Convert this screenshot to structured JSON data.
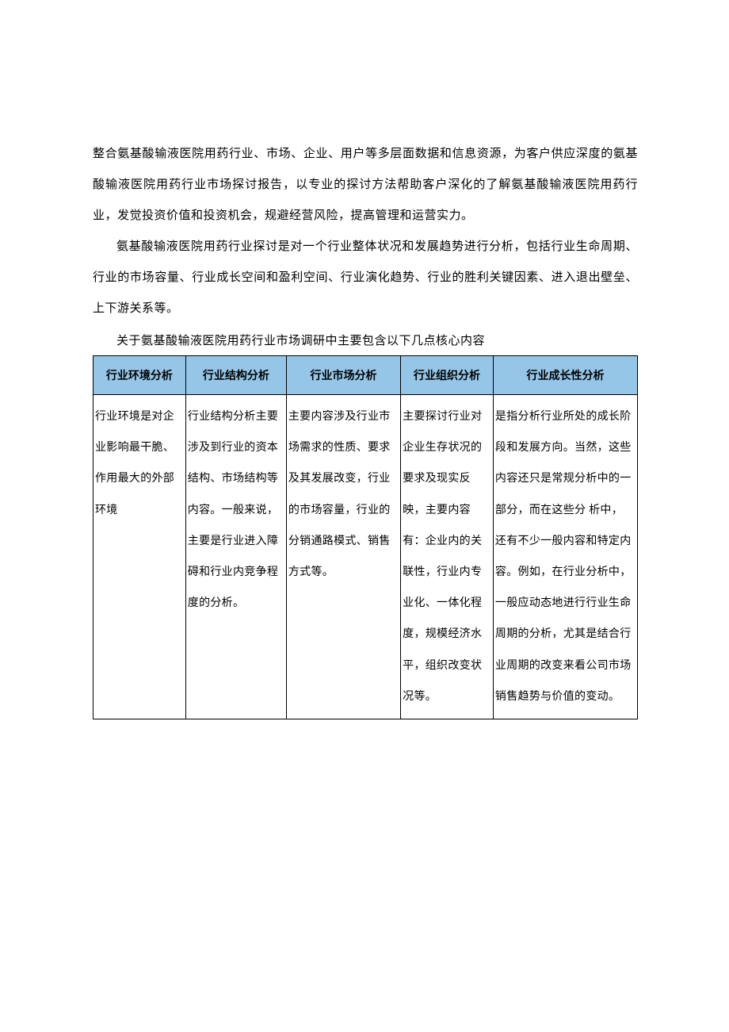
{
  "paragraphs": {
    "p1": "整合氨基酸输液医院用药行业、市场、企业、用户等多层面数据和信息资源，为客户供应深度的氨基酸输液医院用药行业市场探讨报告，以专业的探讨方法帮助客户深化的了解氨基酸输液医院用药行业，发觉投资价值和投资机会，规避经营风险，提高管理和运营实力。",
    "p2": "氨基酸输液医院用药行业探讨是对一个行业整体状况和发展趋势进行分析，包括行业生命周期、行业的市场容量、行业成长空间和盈利空间、行业演化趋势、行业的胜利关键因素、进入退出壁垒、上下游关系等。",
    "caption": "关于氨基酸输液医院用药行业市场调研中主要包含以下几点核心内容"
  },
  "table": {
    "type": "table",
    "header_bg_color": "#95c6e8",
    "border_color": "#000000",
    "text_color": "#000000",
    "font_size": 14,
    "headers": {
      "h1": "行业环境分析",
      "h2": "行业结构分析",
      "h3": "行业市场分析",
      "h4": "行业组织分析",
      "h5": "行业成长性分析"
    },
    "cells": {
      "c1": "行业环境是对企业影响最干脆、作用最大的外部环境",
      "c2": "行业结构分析主要涉及到行业的资本结构、市场结构等内容。一般来说，主要是行业进入障碍和行业内竞争程度的分析。",
      "c3": "主要内容涉及行业市场需求的性质、要求及其发展改变，行业的市场容量，行业的分销通路模式、销售方式等。",
      "c4": "主要探讨行业对企业生存状况的要求及现实反映，主要内容有：企业内的关联性，行业内专业化、一体化程度，规模经济水平，组织改变状况等。",
      "c5": "是指分析行业所处的成长阶段和发展方向。当然，这些内容还只是常规分析中的一部分，而在这些分\n\n析中，还有不少一般内容和特定内容。例如，在行业分析中，一般应动态地进行行业生命周期的分析，尤其是结合行业周期的改变来看公司市场销售趋势与价值的变动。"
    },
    "column_widths": [
      "17%",
      "18.5%",
      "21%",
      "17%",
      "26.5%"
    ]
  }
}
